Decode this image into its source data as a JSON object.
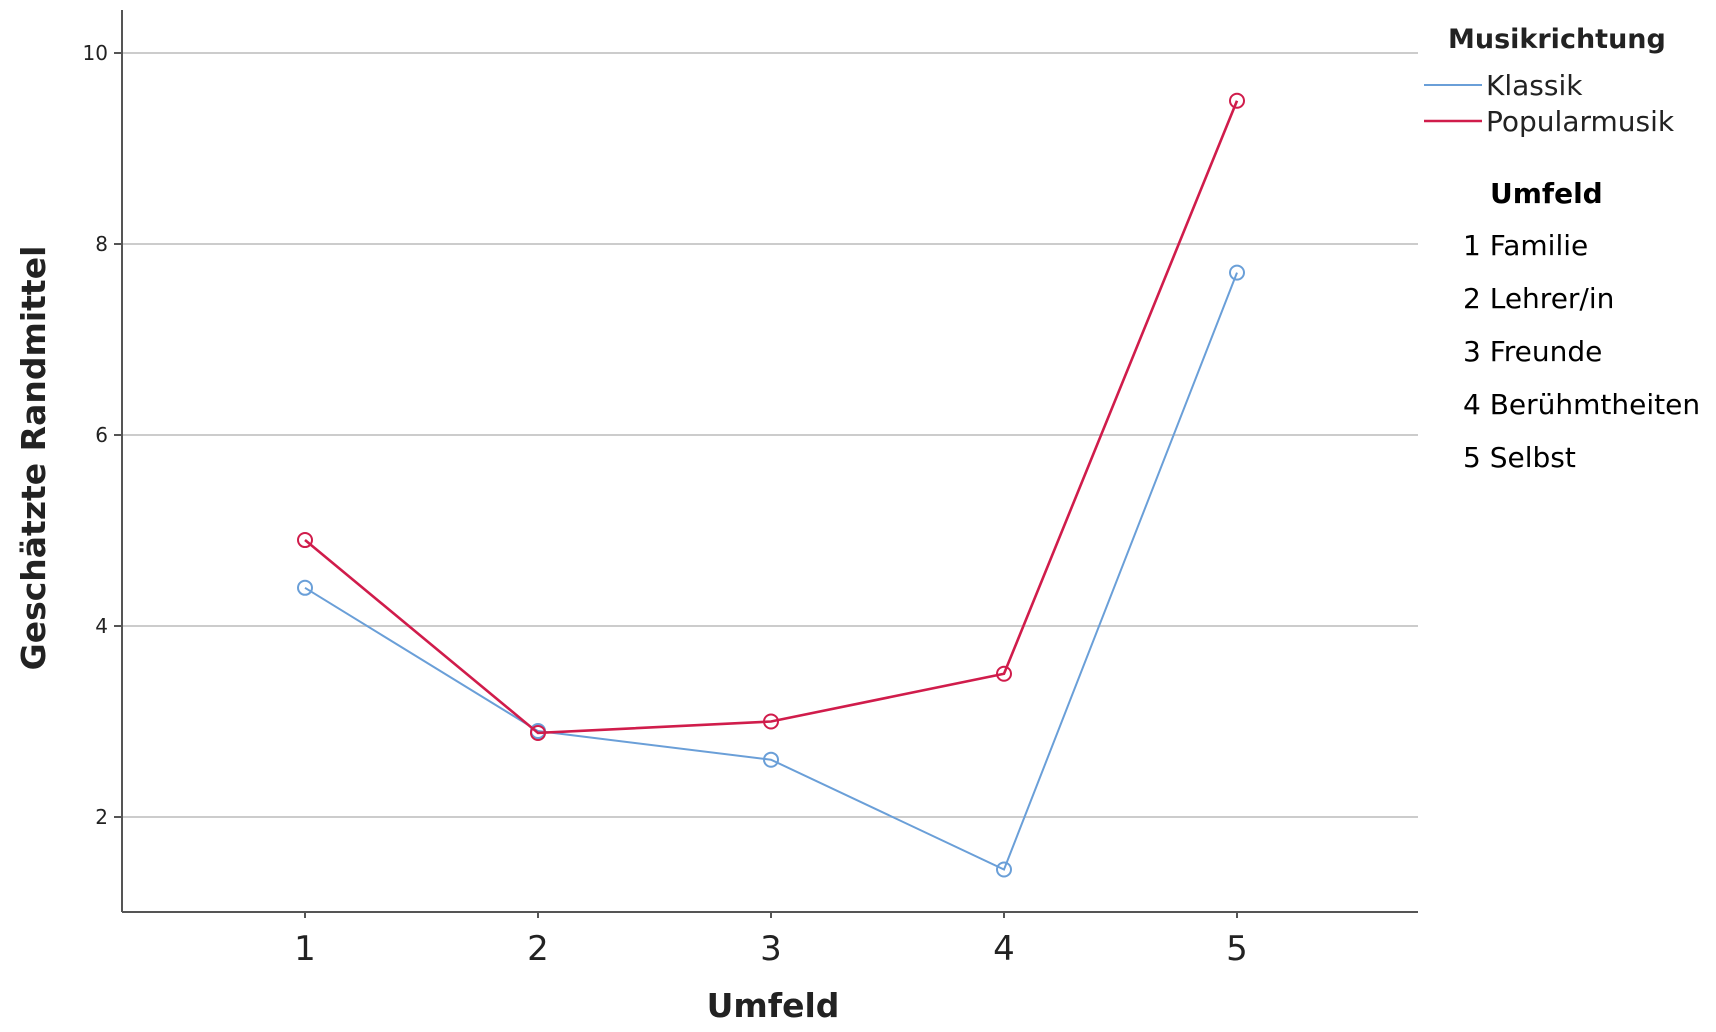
{
  "chart_data": {
    "type": "line",
    "xlabel": "Umfeld",
    "ylabel": "Geschätzte Randmittel",
    "categories": [
      "1",
      "2",
      "3",
      "4",
      "5"
    ],
    "yticks": [
      2,
      4,
      6,
      8,
      10
    ],
    "ylim": [
      1,
      10.5
    ],
    "grid": "horizontal",
    "legend": {
      "title": "Musikrichtung",
      "placement": "top-right"
    },
    "series": [
      {
        "name": "Klassik",
        "color": "#6a9fd8",
        "values": [
          4.4,
          2.9,
          2.6,
          1.45,
          7.7
        ]
      },
      {
        "name": "Popularmusik",
        "color": "#d01c4b",
        "values": [
          4.9,
          2.88,
          3.0,
          3.5,
          9.5
        ]
      }
    ],
    "annotation": {
      "title": "Umfeld",
      "items": [
        "1 Familie",
        "2 Lehrer/in",
        "3 Freunde",
        "4 Berühmtheiten",
        "5 Selbst"
      ]
    }
  }
}
